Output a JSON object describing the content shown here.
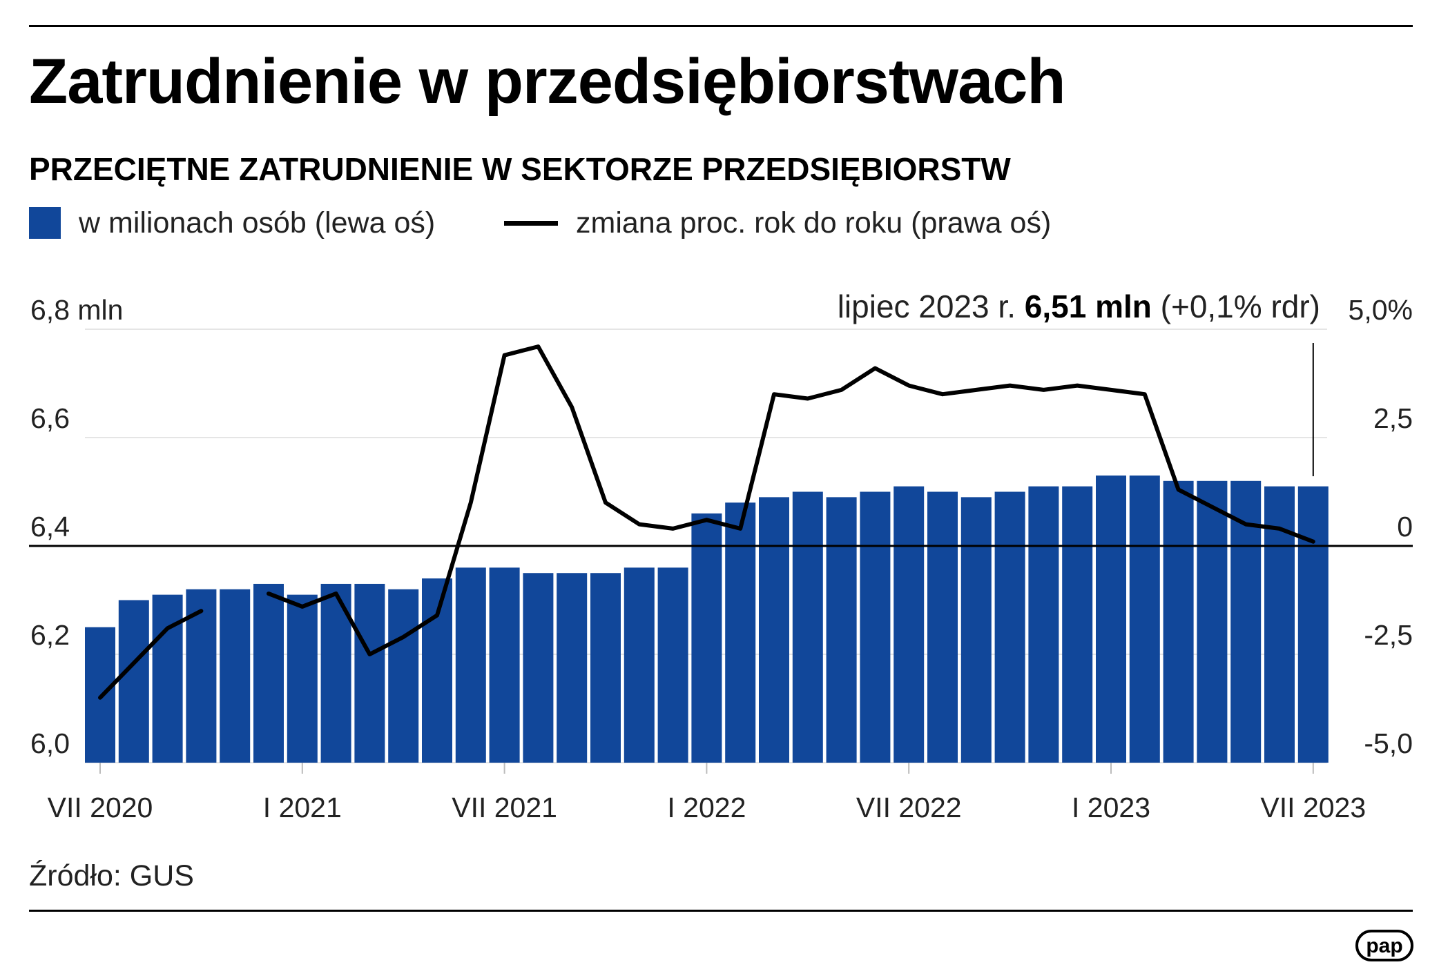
{
  "title": "Zatrudnienie w przedsiębiorstwach",
  "subtitle": "PRZECIĘTNE ZATRUDNIENIE W SEKTORZE PRZEDSIĘBIORSTW",
  "legend": {
    "bars_label": "w milionach osób (lewa oś)",
    "line_label": "zmiana proc. rok do roku (prawa oś)"
  },
  "annotation": {
    "prefix": "lipiec 2023 r. ",
    "value": "6,51 mln",
    "suffix": " (+0,1% rdr)"
  },
  "source": "Źródło: GUS",
  "logo_text": "pap",
  "colors": {
    "bar": "#11479a",
    "line": "#000000",
    "grid": "#e5e5e5",
    "axis": "#000000",
    "text": "#222222"
  },
  "chart_data": {
    "type": "bar",
    "categories": [
      "VII 2020",
      "VIII 2020",
      "IX 2020",
      "X 2020",
      "XI 2020",
      "XII 2020",
      "I 2021",
      "II 2021",
      "III 2021",
      "IV 2021",
      "V 2021",
      "VI 2021",
      "VII 2021",
      "VIII 2021",
      "IX 2021",
      "X 2021",
      "XI 2021",
      "XII 2021",
      "I 2022",
      "II 2022",
      "III 2022",
      "IV 2022",
      "V 2022",
      "VI 2022",
      "VII 2022",
      "VIII 2022",
      "IX 2022",
      "X 2022",
      "XI 2022",
      "XII 2022",
      "I 2023",
      "II 2023",
      "III 2023",
      "IV 2023",
      "V 2023",
      "VI 2023",
      "VII 2023"
    ],
    "series": [
      {
        "type": "bar",
        "axis": "left",
        "values": [
          6.25,
          6.3,
          6.31,
          6.32,
          6.32,
          6.33,
          6.31,
          6.33,
          6.33,
          6.32,
          6.34,
          6.36,
          6.36,
          6.35,
          6.35,
          6.35,
          6.36,
          6.36,
          6.46,
          6.48,
          6.49,
          6.5,
          6.49,
          6.5,
          6.51,
          6.5,
          6.49,
          6.5,
          6.51,
          6.51,
          6.53,
          6.53,
          6.52,
          6.52,
          6.52,
          6.51,
          6.51
        ]
      },
      {
        "type": "line",
        "axis": "right",
        "values": [
          -3.5,
          -2.7,
          -1.9,
          -1.5,
          null,
          -1.1,
          -1.4,
          -1.1,
          -2.5,
          -2.1,
          -1.6,
          1.0,
          4.4,
          4.6,
          3.2,
          1.0,
          0.5,
          0.4,
          0.6,
          0.4,
          3.5,
          3.4,
          3.6,
          4.1,
          3.7,
          3.5,
          3.6,
          3.7,
          3.6,
          3.7,
          3.6,
          3.5,
          1.3,
          0.9,
          0.5,
          0.4,
          0.1
        ]
      }
    ],
    "x_tick_labels": [
      "VII 2020",
      "I 2021",
      "VII 2021",
      "I 2022",
      "VII 2022",
      "I 2023",
      "VII 2023"
    ],
    "y_left": {
      "min": 6.0,
      "max": 6.8,
      "ticks": [
        "6,0",
        "6,2",
        "6,4",
        "6,6",
        "6,8 mln"
      ]
    },
    "y_right": {
      "min": -5.0,
      "max": 5.0,
      "ticks": [
        "-5,0",
        "-2,5",
        "0",
        "2,5",
        "5,0%"
      ]
    },
    "grid": true
  }
}
